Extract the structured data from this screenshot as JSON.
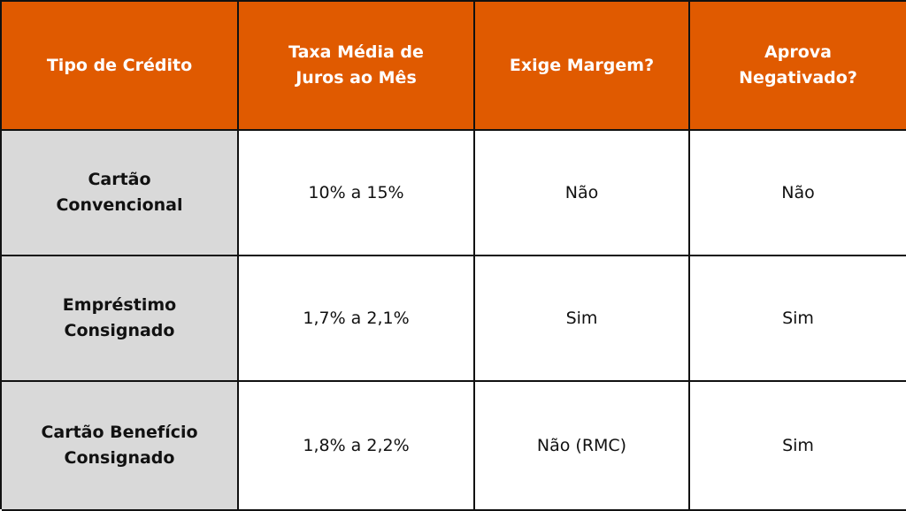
{
  "table": {
    "headers": [
      "Tipo de Crédito",
      "Taxa Média de Juros ao Mês",
      "Exige Margem?",
      "Aprova Negativado?"
    ],
    "header_color": "#e05a00",
    "rows": [
      [
        "Cartão Convencional",
        "10% a 15%",
        "Não",
        "Não"
      ],
      [
        "Empréstimo Consignado",
        "1,7% a 2,1%",
        "Sim",
        "Sim"
      ],
      [
        "Cartão Benefício Consignado",
        "1,8% a 2,2%",
        "Não (RMC)",
        "Sim"
      ]
    ]
  }
}
